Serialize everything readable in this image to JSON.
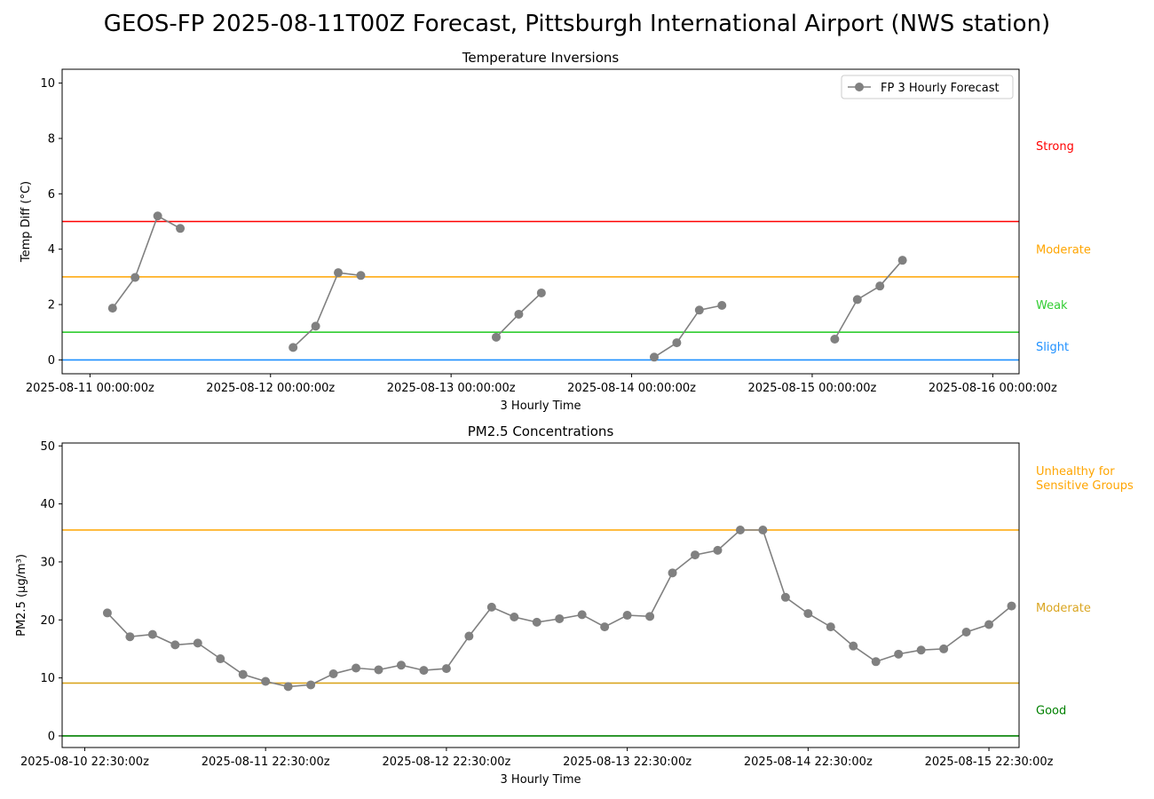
{
  "figure": {
    "title": "GEOS-FP 2025-08-11T00Z Forecast, Pittsburgh International Airport (NWS station)"
  },
  "chart_data": [
    {
      "type": "line",
      "title": "Temperature Inversions",
      "xlabel": "3 Hourly Time",
      "ylabel": "Temp Diff (°C)",
      "ylim": [
        -0.5,
        10.5
      ],
      "xlim_hours": [
        -3.7,
        123.5
      ],
      "yticks": [
        0,
        2,
        4,
        6,
        8,
        10
      ],
      "xticks": [
        {
          "h": 0,
          "label": "2025-08-11 00:00:00z"
        },
        {
          "h": 24,
          "label": "2025-08-12 00:00:00z"
        },
        {
          "h": 48,
          "label": "2025-08-13 00:00:00z"
        },
        {
          "h": 72,
          "label": "2025-08-14 00:00:00z"
        },
        {
          "h": 96,
          "label": "2025-08-15 00:00:00z"
        },
        {
          "h": 120,
          "label": "2025-08-16 00:00:00z"
        }
      ],
      "legend": {
        "location": "top-right",
        "entries": [
          "FP 3 Hourly Forecast"
        ]
      },
      "series": [
        {
          "name": "FP 3 Hourly Forecast",
          "color": "#808080",
          "segments": [
            [
              {
                "h": 3,
                "y": 1.87
              },
              {
                "h": 6,
                "y": 2.98
              },
              {
                "h": 9,
                "y": 5.2
              },
              {
                "h": 12,
                "y": 4.75
              }
            ],
            [
              {
                "h": 27,
                "y": 0.45
              },
              {
                "h": 30,
                "y": 1.22
              },
              {
                "h": 33,
                "y": 3.15
              },
              {
                "h": 36,
                "y": 3.05
              }
            ],
            [
              {
                "h": 54,
                "y": 0.82
              },
              {
                "h": 57,
                "y": 1.65
              },
              {
                "h": 60,
                "y": 2.42
              }
            ],
            [
              {
                "h": 75,
                "y": 0.1
              },
              {
                "h": 78,
                "y": 0.62
              },
              {
                "h": 81,
                "y": 1.8
              },
              {
                "h": 84,
                "y": 1.97
              }
            ],
            [
              {
                "h": 99,
                "y": 0.75
              },
              {
                "h": 102,
                "y": 2.18
              },
              {
                "h": 105,
                "y": 2.67
              },
              {
                "h": 108,
                "y": 3.6
              }
            ]
          ]
        }
      ],
      "thresholds": [
        {
          "value": 0,
          "color": "#1e90ff",
          "label": "Slight",
          "label_y": 0.5
        },
        {
          "value": 1,
          "color": "#32cd32",
          "label": "Weak",
          "label_y": 2.0
        },
        {
          "value": 3,
          "color": "#ffa500",
          "label": "Moderate",
          "label_y": 4.0
        },
        {
          "value": 5,
          "color": "#ff0000",
          "label": "Strong",
          "label_y": 7.75
        }
      ]
    },
    {
      "type": "line",
      "title": "PM2.5 Concentrations",
      "xlabel": "3 Hourly Time",
      "ylabel": "PM2.5 (μg/m³)",
      "ylim": [
        -2,
        50.5
      ],
      "xlim_hours": [
        -3.0,
        124.0
      ],
      "yticks": [
        0,
        10,
        20,
        30,
        40,
        50
      ],
      "xticks": [
        {
          "h": 0,
          "label": "2025-08-10 22:30:00z"
        },
        {
          "h": 24,
          "label": "2025-08-11 22:30:00z"
        },
        {
          "h": 48,
          "label": "2025-08-12 22:30:00z"
        },
        {
          "h": 72,
          "label": "2025-08-13 22:30:00z"
        },
        {
          "h": 96,
          "label": "2025-08-14 22:30:00z"
        },
        {
          "h": 120,
          "label": "2025-08-15 22:30:00z"
        }
      ],
      "series": [
        {
          "name": "",
          "color": "#808080",
          "start_h": 3,
          "step_h": 3,
          "values": [
            21.2,
            17.1,
            17.5,
            15.7,
            16.0,
            13.3,
            10.6,
            9.4,
            8.5,
            8.8,
            10.7,
            11.7,
            11.4,
            12.2,
            11.3,
            11.6,
            17.2,
            22.2,
            20.5,
            19.6,
            20.2,
            20.9,
            18.8,
            20.8,
            20.6,
            28.1,
            31.2,
            32.0,
            35.5,
            35.5,
            23.9,
            21.1,
            18.8,
            15.5,
            12.8,
            14.1,
            14.8,
            15.0,
            17.9,
            19.2,
            22.4
          ]
        }
      ],
      "thresholds": [
        {
          "value": 0,
          "color": "#008000",
          "label": "Good",
          "label_y": 4.5
        },
        {
          "value": 9.1,
          "color": "#daa520",
          "label": "Moderate",
          "label_y": 22.2
        },
        {
          "value": 35.5,
          "color": "#ffa500",
          "label": "Unhealthy for\nSensitive Groups",
          "label_y": 44.5
        }
      ]
    }
  ]
}
